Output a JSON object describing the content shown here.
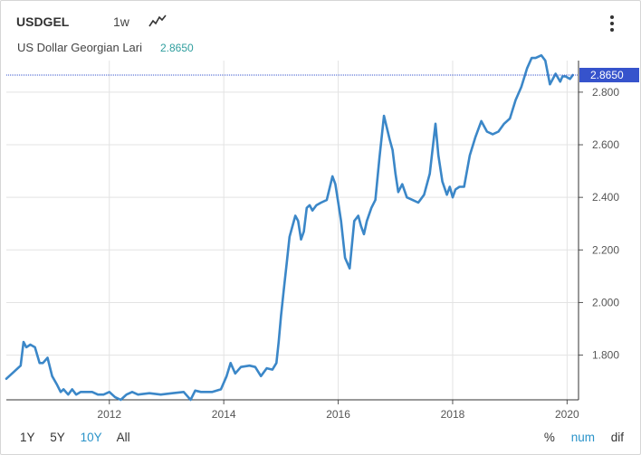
{
  "header": {
    "symbol": "USDGEL",
    "interval": "1w",
    "name": "US Dollar Georgian Lari",
    "last_price": "2.8650"
  },
  "range_buttons": [
    {
      "label": "1Y"
    },
    {
      "label": "5Y"
    },
    {
      "label": "10Y",
      "active": true
    },
    {
      "label": "All"
    }
  ],
  "mode_buttons": [
    {
      "label": "%"
    },
    {
      "label": "num",
      "active": true
    },
    {
      "label": "dif"
    }
  ],
  "colors": {
    "line": "#3b87c8",
    "grid": "#e3e3e3",
    "price_tag_bg": "#3653cc",
    "active_text": "#2a93c9",
    "price_text": "#2f9e9e"
  },
  "chart_data": {
    "type": "line",
    "xlim": [
      2010.2,
      2020.2
    ],
    "ylim": [
      1.63,
      2.92
    ],
    "x_ticks": [
      "2012",
      "2014",
      "2016",
      "2018",
      "2020"
    ],
    "y_ticks": [
      "1.800",
      "2.000",
      "2.200",
      "2.400",
      "2.600",
      "2.800"
    ],
    "grid": true,
    "last_value": 2.865,
    "last_value_label": "2.8650",
    "series": [
      {
        "x": [
          2010.2,
          2010.3,
          2010.45,
          2010.5,
          2010.55,
          2010.62,
          2010.7,
          2010.78,
          2010.84,
          2010.92,
          2011.0,
          2011.08,
          2011.15,
          2011.2,
          2011.28,
          2011.35,
          2011.42,
          2011.5,
          2011.6,
          2011.7,
          2011.8,
          2011.9,
          2012.0,
          2012.1,
          2012.2,
          2012.3,
          2012.4,
          2012.5,
          2012.7,
          2012.9,
          2013.1,
          2013.3,
          2013.42,
          2013.5,
          2013.6,
          2013.8,
          2013.95,
          2014.05,
          2014.12,
          2014.2,
          2014.3,
          2014.45,
          2014.55,
          2014.65,
          2014.75,
          2014.85,
          2014.92,
          2014.96,
          2015.0,
          2015.05,
          2015.1,
          2015.15,
          2015.2,
          2015.25,
          2015.3,
          2015.35,
          2015.4,
          2015.45,
          2015.5,
          2015.55,
          2015.62,
          2015.7,
          2015.8,
          2015.9,
          2015.95,
          2016.0,
          2016.05,
          2016.12,
          2016.2,
          2016.28,
          2016.35,
          2016.4,
          2016.45,
          2016.5,
          2016.58,
          2016.65,
          2016.72,
          2016.8,
          2016.9,
          2016.95,
          2017.0,
          2017.05,
          2017.12,
          2017.2,
          2017.3,
          2017.4,
          2017.5,
          2017.6,
          2017.7,
          2017.75,
          2017.82,
          2017.9,
          2017.95,
          2018.0,
          2018.05,
          2018.12,
          2018.2,
          2018.3,
          2018.4,
          2018.5,
          2018.6,
          2018.7,
          2018.8,
          2018.9,
          2019.0,
          2019.1,
          2019.2,
          2019.3,
          2019.38,
          2019.45,
          2019.55,
          2019.62,
          2019.7,
          2019.8,
          2019.88,
          2019.92,
          2019.97,
          2020.05,
          2020.1
        ],
        "y": [
          1.71,
          1.73,
          1.76,
          1.85,
          1.83,
          1.84,
          1.83,
          1.77,
          1.77,
          1.79,
          1.72,
          1.69,
          1.66,
          1.67,
          1.65,
          1.67,
          1.65,
          1.66,
          1.66,
          1.66,
          1.65,
          1.65,
          1.66,
          1.64,
          1.63,
          1.65,
          1.66,
          1.65,
          1.655,
          1.65,
          1.655,
          1.66,
          1.63,
          1.665,
          1.66,
          1.66,
          1.67,
          1.72,
          1.77,
          1.73,
          1.755,
          1.76,
          1.755,
          1.72,
          1.75,
          1.745,
          1.77,
          1.85,
          1.95,
          2.05,
          2.15,
          2.25,
          2.29,
          2.33,
          2.31,
          2.24,
          2.27,
          2.36,
          2.37,
          2.35,
          2.37,
          2.38,
          2.39,
          2.48,
          2.45,
          2.38,
          2.31,
          2.17,
          2.13,
          2.31,
          2.33,
          2.29,
          2.26,
          2.31,
          2.36,
          2.39,
          2.55,
          2.71,
          2.62,
          2.58,
          2.49,
          2.42,
          2.45,
          2.4,
          2.39,
          2.38,
          2.41,
          2.49,
          2.68,
          2.56,
          2.46,
          2.41,
          2.44,
          2.4,
          2.43,
          2.44,
          2.44,
          2.56,
          2.63,
          2.69,
          2.65,
          2.64,
          2.65,
          2.68,
          2.7,
          2.77,
          2.82,
          2.89,
          2.93,
          2.93,
          2.94,
          2.92,
          2.83,
          2.87,
          2.84,
          2.86,
          2.86,
          2.85,
          2.865
        ]
      }
    ]
  }
}
